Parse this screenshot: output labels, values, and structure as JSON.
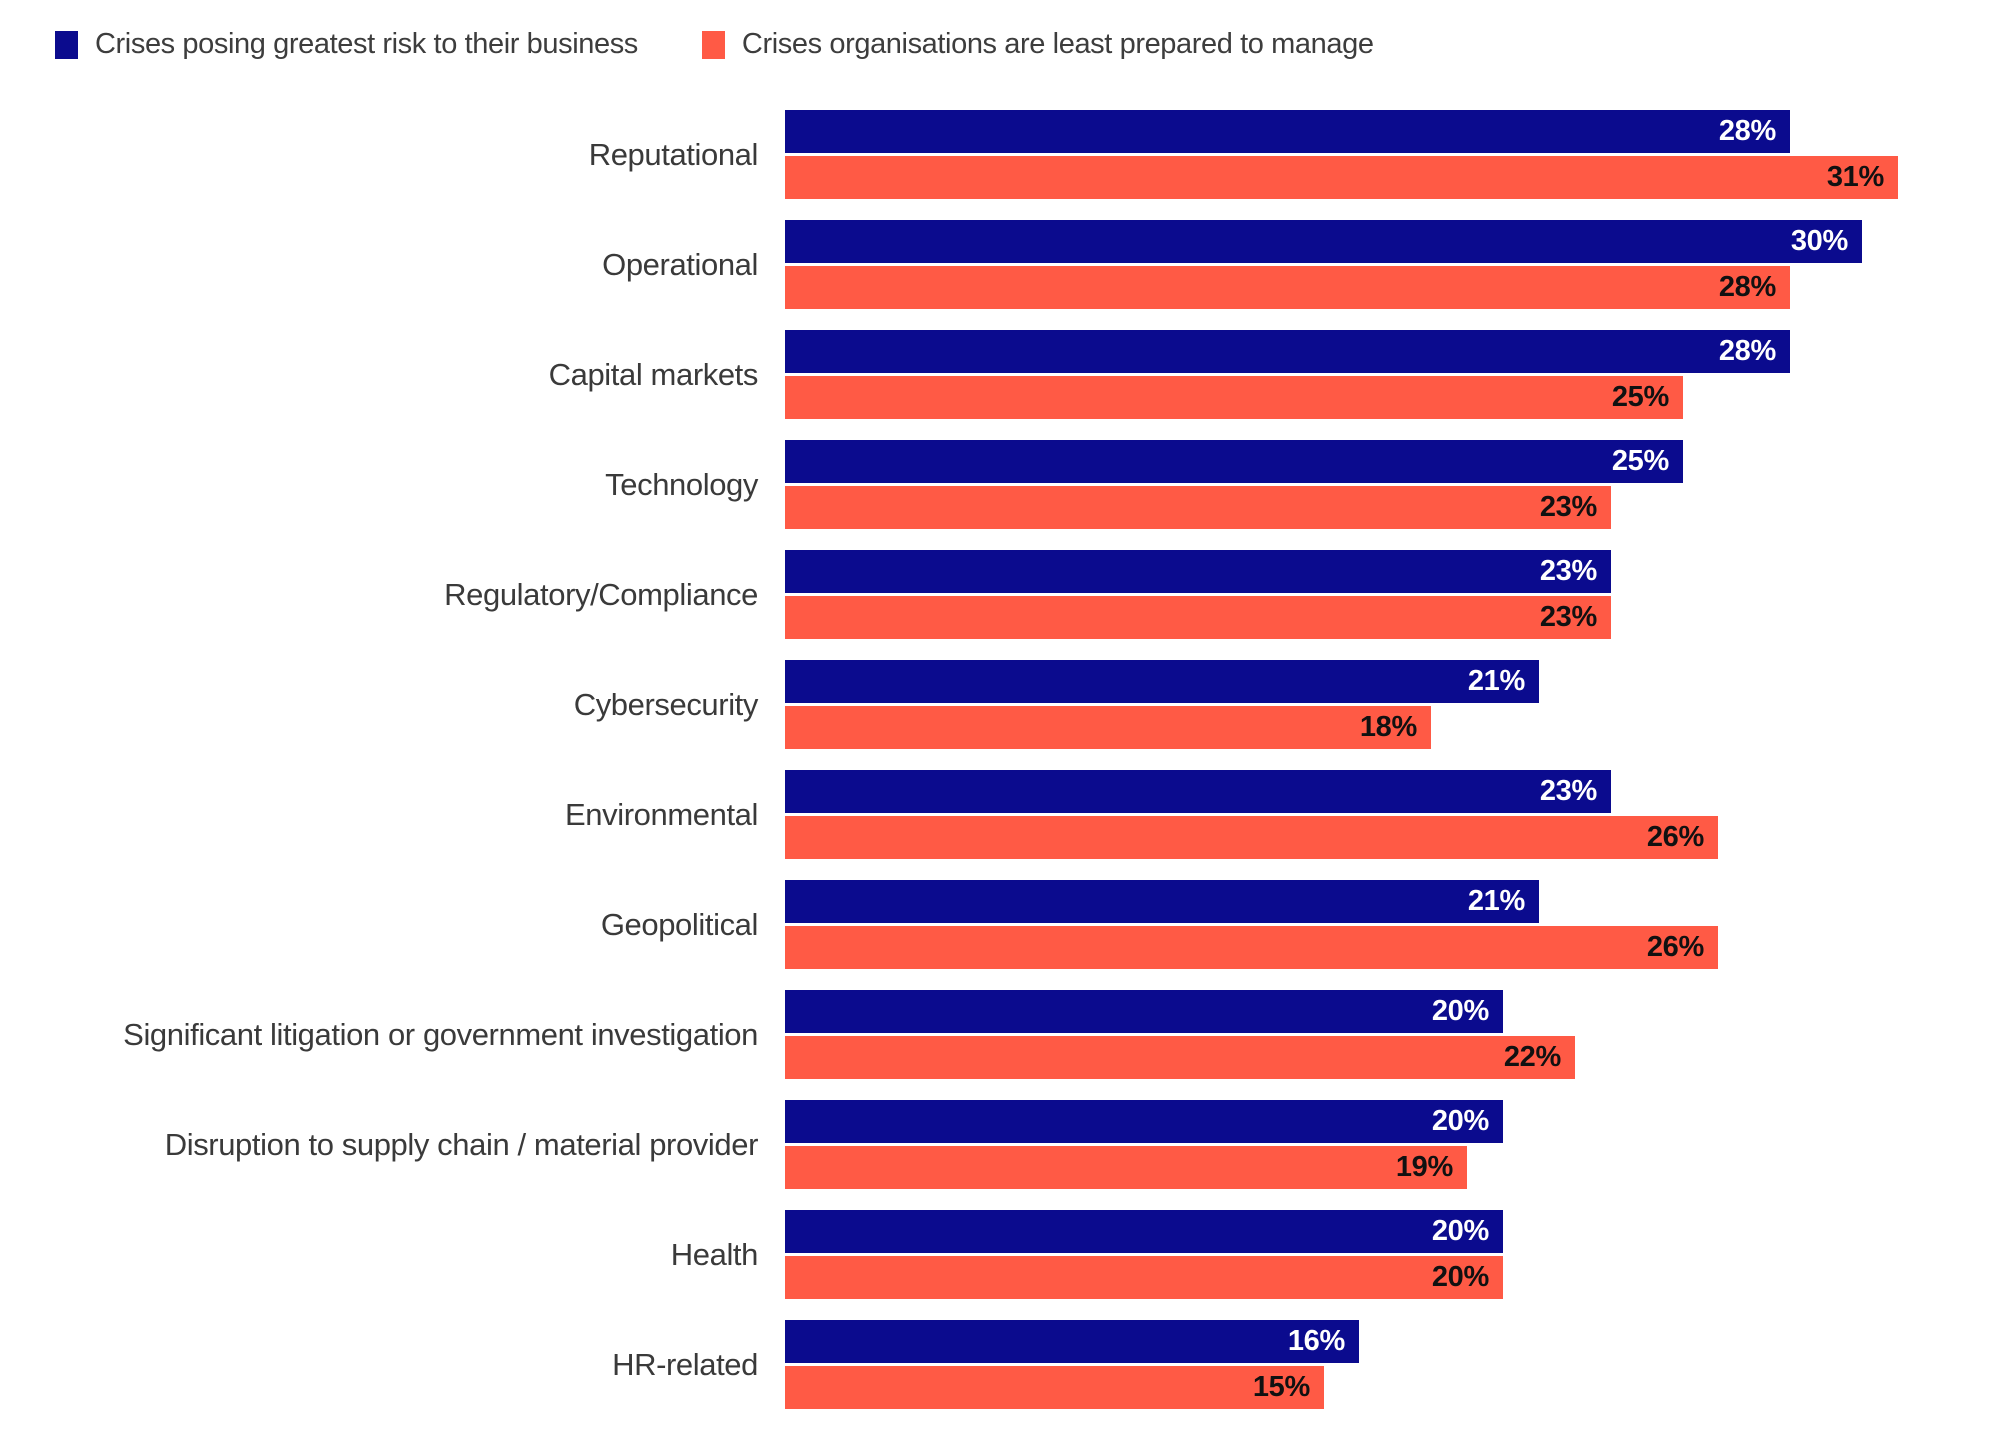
{
  "legend": {
    "items": [
      {
        "label": "Crises posing greatest risk to their business",
        "color": "#0b0b8e"
      },
      {
        "label": "Crises organisations are least prepared to manage",
        "color": "#ff5a45"
      }
    ]
  },
  "chart_data": {
    "type": "bar",
    "orientation": "horizontal",
    "grouped": true,
    "title": "",
    "xlabel": "",
    "ylabel": "",
    "grid": false,
    "legend_position": "top-left",
    "value_labels": "inside-end",
    "value_suffix": "%",
    "xlim": [
      0,
      34
    ],
    "categories": [
      "Reputational",
      "Operational",
      "Capital markets",
      "Technology",
      "Regulatory/Compliance",
      "Cybersecurity",
      "Environmental",
      "Geopolitical",
      "Significant litigation or government investigation",
      "Disruption to supply chain / material provider",
      "Health",
      "HR-related"
    ],
    "series": [
      {
        "name": "Crises posing greatest risk to their business",
        "color": "#0b0b8e",
        "label_color": "#ffffff",
        "values": [
          28,
          30,
          28,
          25,
          23,
          21,
          23,
          21,
          20,
          20,
          20,
          16
        ]
      },
      {
        "name": "Crises organisations are least prepared to manage",
        "color": "#ff5a45",
        "label_color": "#111111",
        "values": [
          31,
          28,
          25,
          23,
          23,
          18,
          26,
          26,
          22,
          19,
          20,
          15
        ]
      }
    ]
  }
}
